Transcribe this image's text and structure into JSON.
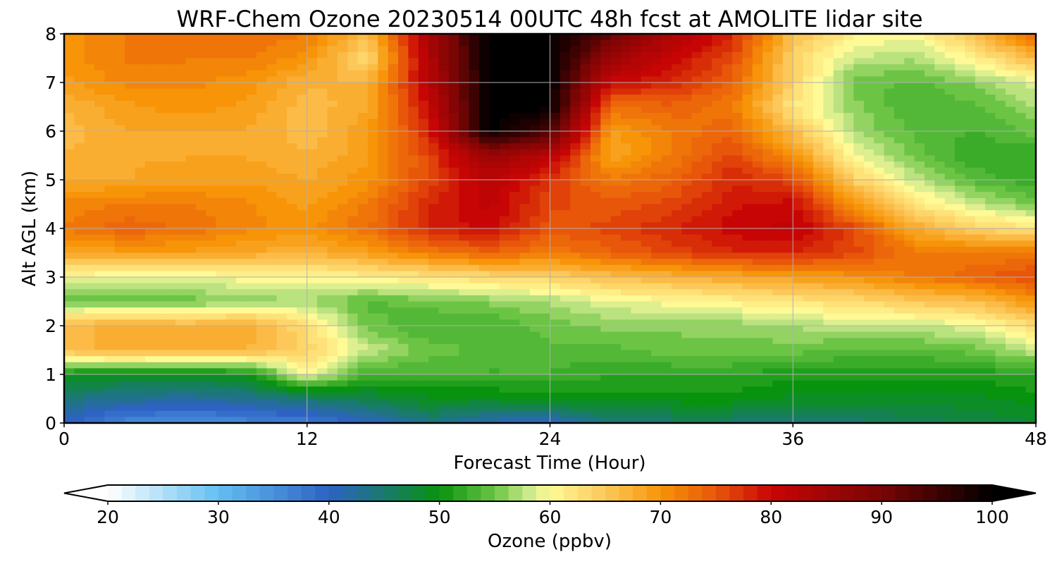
{
  "chart_data": {
    "type": "heatmap",
    "title": "WRF-Chem Ozone  20230514 00UTC 48h fcst at AMOLITE lidar site",
    "xlabel": "Forecast Time (Hour)",
    "ylabel": "Alt AGL (km)",
    "xlim": [
      0,
      48
    ],
    "ylim": [
      0,
      8
    ],
    "xticks": [
      0,
      12,
      24,
      36,
      48
    ],
    "yticks": [
      0,
      1,
      2,
      3,
      4,
      5,
      6,
      7,
      8
    ],
    "grid": true,
    "hours": [
      0,
      3,
      6,
      9,
      12,
      15,
      18,
      21,
      24,
      27,
      30,
      33,
      36,
      39,
      42,
      45,
      48
    ],
    "altitudes_km": [
      0,
      0.5,
      1,
      1.5,
      2,
      2.5,
      3,
      3.5,
      4,
      4.5,
      5,
      5.5,
      6,
      6.5,
      7,
      7.5,
      8
    ],
    "ozone_ppbv": [
      [
        40,
        36,
        35,
        36,
        37,
        40,
        44,
        41,
        40,
        44,
        45,
        45,
        44,
        45,
        46,
        47,
        48
      ],
      [
        44,
        43,
        42,
        43,
        45,
        47,
        49,
        49,
        50,
        50,
        50,
        50,
        49,
        49,
        49,
        49,
        50
      ],
      [
        50,
        49,
        49,
        50,
        60,
        53,
        53,
        53,
        53,
        52,
        52,
        52,
        51,
        51,
        51,
        51,
        52
      ],
      [
        66,
        68,
        67,
        67,
        64,
        58,
        55,
        54,
        54,
        54,
        55,
        55,
        55,
        54,
        54,
        55,
        58
      ],
      [
        66,
        68,
        67,
        68,
        63,
        55,
        53,
        53,
        55,
        56,
        56,
        56,
        57,
        58,
        58,
        59,
        63
      ],
      [
        55,
        55,
        55,
        56,
        57,
        54,
        55,
        56,
        57,
        59,
        60,
        61,
        62,
        63,
        65,
        66,
        70
      ],
      [
        60,
        59,
        59,
        60,
        60,
        61,
        62,
        63,
        64,
        66,
        67,
        68,
        69,
        70,
        72,
        74,
        76
      ],
      [
        68,
        69,
        69,
        68,
        67,
        69,
        72,
        74,
        72,
        74,
        76,
        78,
        78,
        76,
        72,
        72,
        72
      ],
      [
        72,
        74,
        73,
        71,
        70,
        73,
        78,
        80,
        75,
        76,
        78,
        80,
        81,
        76,
        68,
        64,
        62
      ],
      [
        71,
        72,
        72,
        71,
        69,
        72,
        78,
        81,
        76,
        75,
        76,
        79,
        80,
        70,
        62,
        58,
        55
      ],
      [
        68,
        68,
        69,
        69,
        68,
        70,
        76,
        82,
        77,
        72,
        74,
        78,
        76,
        64,
        58,
        54,
        52
      ],
      [
        67,
        68,
        68,
        68,
        67,
        69,
        76,
        86,
        82,
        68,
        72,
        76,
        70,
        60,
        55,
        52,
        52
      ],
      [
        66,
        68,
        68,
        68,
        66,
        69,
        78,
        100,
        94,
        69,
        72,
        74,
        66,
        57,
        54,
        53,
        55
      ],
      [
        67,
        69,
        70,
        69,
        66,
        68,
        80,
        100,
        100,
        73,
        74,
        72,
        62,
        56,
        53,
        54,
        57
      ],
      [
        69,
        71,
        71,
        70,
        67,
        67,
        82,
        100,
        100,
        80,
        78,
        74,
        64,
        55,
        54,
        56,
        59
      ],
      [
        70,
        72,
        72,
        72,
        70,
        63,
        83,
        100,
        100,
        86,
        80,
        76,
        64,
        58,
        57,
        61,
        67
      ],
      [
        70,
        72,
        73,
        73,
        72,
        66,
        84,
        100,
        100,
        92,
        84,
        78,
        66,
        61,
        60,
        66,
        74
      ]
    ],
    "colorbar": {
      "label": "Ozone  (ppbv)",
      "min": 20,
      "max": 100,
      "ticks": [
        20,
        30,
        40,
        50,
        60,
        70,
        80,
        90,
        100
      ],
      "extend": "both",
      "stops": [
        {
          "value": 20,
          "color": "#ffffff"
        },
        {
          "value": 30,
          "color": "#63bff1"
        },
        {
          "value": 40,
          "color": "#2e62c4"
        },
        {
          "value": 45,
          "color": "#197a6e"
        },
        {
          "value": 50,
          "color": "#08930e"
        },
        {
          "value": 55,
          "color": "#6cc445"
        },
        {
          "value": 58,
          "color": "#c9e88a"
        },
        {
          "value": 60,
          "color": "#fffa96"
        },
        {
          "value": 65,
          "color": "#fcc85a"
        },
        {
          "value": 70,
          "color": "#f79408"
        },
        {
          "value": 75,
          "color": "#e8560a"
        },
        {
          "value": 80,
          "color": "#c80505"
        },
        {
          "value": 90,
          "color": "#7a0505"
        },
        {
          "value": 100,
          "color": "#000000"
        }
      ]
    }
  }
}
